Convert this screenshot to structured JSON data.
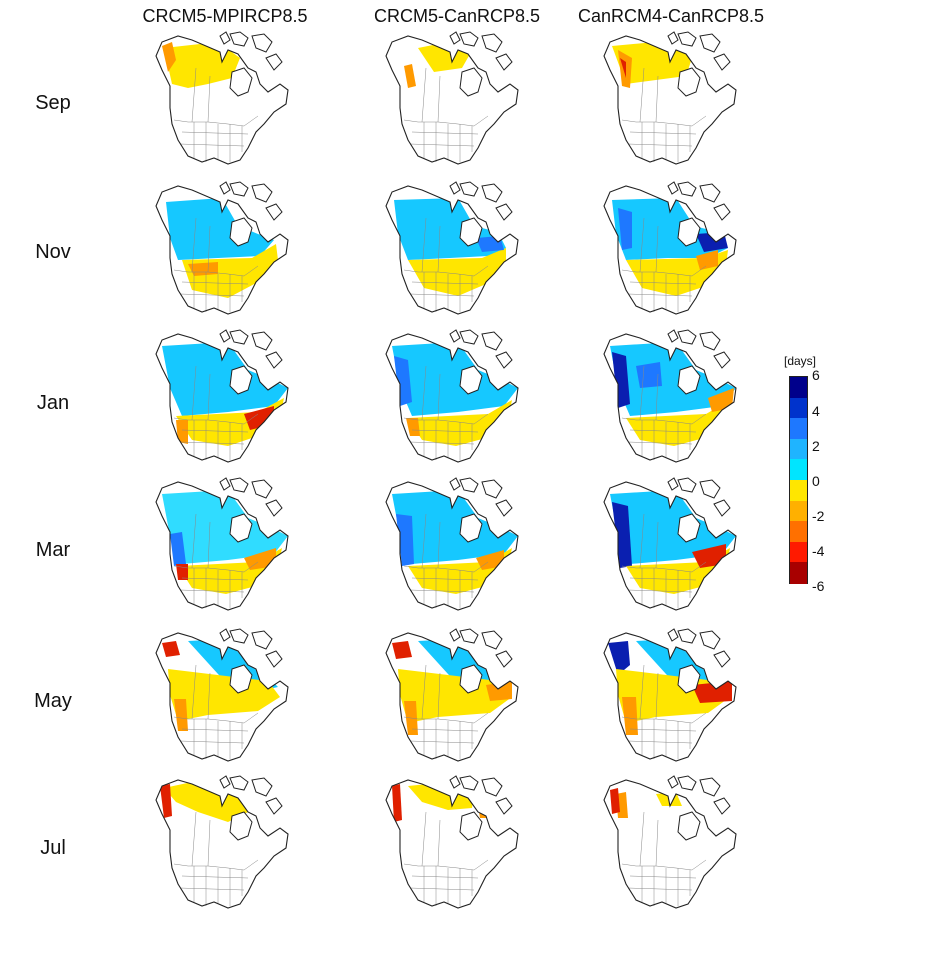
{
  "columns": [
    "CRCM5-MPIRCP8.5",
    "CRCM5-CanRCP8.5",
    "CanRCM4-CanRCP8.5"
  ],
  "rows": [
    "Sep",
    "Nov",
    "Jan",
    "Mar",
    "May",
    "Jul"
  ],
  "colorbar": {
    "unit": "[days]",
    "ticks": [
      "6",
      "4",
      "2",
      "0",
      "-2",
      "-4",
      "-6"
    ],
    "colors": [
      "#00008b",
      "#0033cc",
      "#1e78ff",
      "#1fb4ff",
      "#00e5ff",
      "#ffe600",
      "#ffb000",
      "#ff7000",
      "#ff1a00",
      "#a80000"
    ]
  },
  "map_style": {
    "land_fill": "#ffffff",
    "coast_color": "#222222",
    "border_color": "#888888"
  }
}
